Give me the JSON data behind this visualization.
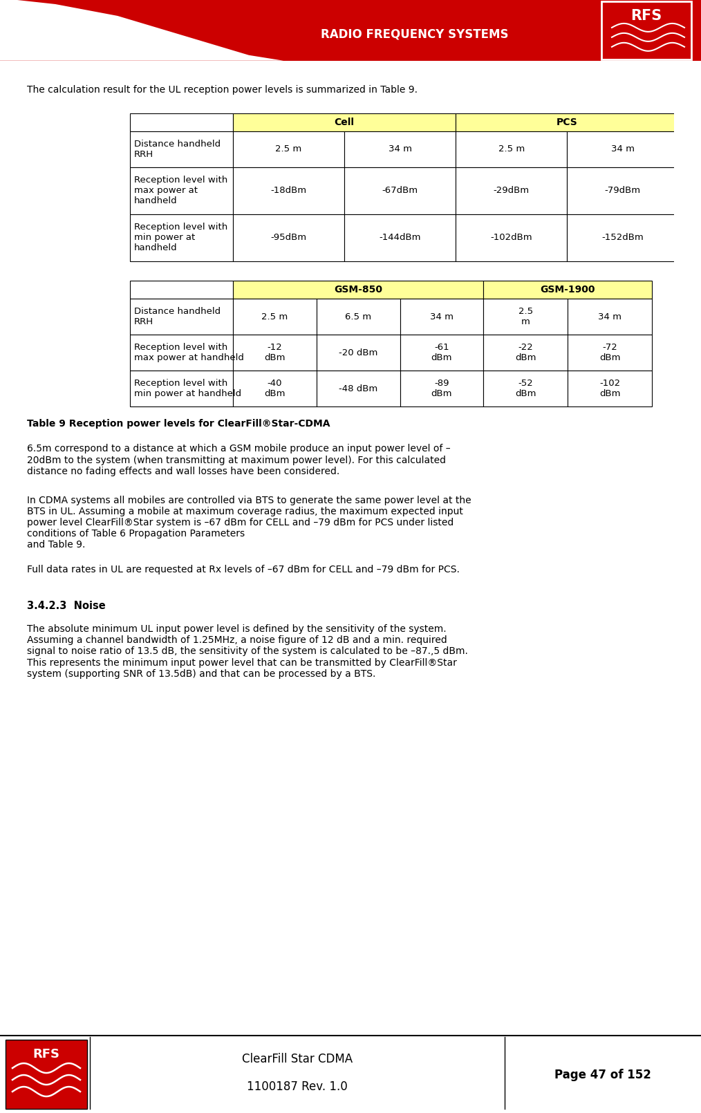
{
  "header_bg": "#cc0000",
  "header_text": "RADIO FREQUENCY SYSTEMS",
  "header_text_color": "#ffffff",
  "page_bg": "#ffffff",
  "intro_text": "The calculation result for the UL reception power levels is summarized in Table 9.",
  "table1_header_bg": "#ffff99",
  "table1_rows": [
    [
      "Distance handheld\nRRH",
      "2.5 m",
      "34 m",
      "2.5 m",
      "34 m"
    ],
    [
      "Reception level with\nmax power at\nhandheld",
      "-18dBm",
      "-67dBm",
      "-29dBm",
      "-79dBm"
    ],
    [
      "Reception level with\nmin power at\nhandheld",
      "-95dBm",
      "-144dBm",
      "-102dBm",
      "-152dBm"
    ]
  ],
  "table2_rows": [
    [
      "Distance handheld\nRRH",
      "2.5 m",
      "6.5 m",
      "34 m",
      "2.5\nm",
      "34 m"
    ],
    [
      "Reception level with\nmax power at handheld",
      "-12\ndBm",
      "-20 dBm",
      "-61\ndBm",
      "-22\ndBm",
      "-72\ndBm"
    ],
    [
      "Reception level with\nmin power at handheld",
      "-40\ndBm",
      "-48 dBm",
      "-89\ndBm",
      "-52\ndBm",
      "-102\ndBm"
    ]
  ],
  "table_caption": "Table 9 Reception power levels for ClearFill®Star-CDMA",
  "para1": "6.5m correspond to a distance at which a GSM mobile produce an input power level of –\n20dBm to the system (when transmitting at maximum power level). For this calculated\ndistance no fading effects and wall losses have been considered.",
  "para2": "In CDMA systems all mobiles are controlled via BTS to generate the same power level at the\nBTS in UL. Assuming a mobile at maximum coverage radius, the maximum expected input\npower level ClearFill®Star system is –67 dBm for CELL and –79 dBm for PCS under listed\nconditions of Table 6 Propagation Parameters\nand Table 9.",
  "para3": "Full data rates in UL are requested at Rx levels of –67 dBm for CELL and –79 dBm for PCS.",
  "section_heading": "3.4.2.3  Noise",
  "para4": "The absolute minimum UL input power level is defined by the sensitivity of the system.\nAssuming a channel bandwidth of 1.25MHz, a noise figure of 12 dB and a min. required\nsignal to noise ratio of 13.5 dB, the sensitivity of the system is calculated to be –87.,5 dBm.\nThis represents the minimum input power level that can be transmitted by ClearFill®Star\nsystem (supporting SNR of 13.5dB) and that can be processed by a BTS.",
  "footer_doc": "ClearFill Star CDMA",
  "footer_rev": "1100187 Rev. 1.0",
  "footer_page": "Page 47 of 152",
  "rfs_red": "#cc0000"
}
